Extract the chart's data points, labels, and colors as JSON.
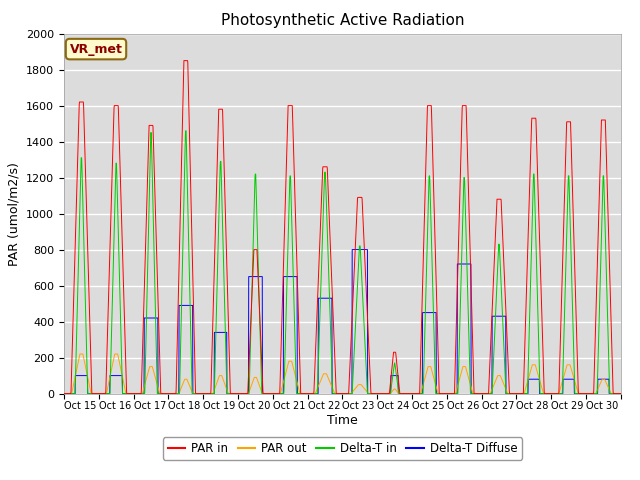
{
  "title": "Photosynthetic Active Radiation",
  "ylabel": "PAR (umol/m2/s)",
  "xlabel": "Time",
  "annotation": "VR_met",
  "ylim": [
    0,
    2000
  ],
  "line_colors": {
    "PAR in": "#FF0000",
    "PAR out": "#FFA500",
    "Delta-T in": "#00CC00",
    "Delta-T Diffuse": "#0000FF"
  },
  "legend_labels": [
    "PAR in",
    "PAR out",
    "Delta-T in",
    "Delta-T Diffuse"
  ],
  "xtick_labels": [
    "Oct 15",
    "Oct 16",
    "Oct 17",
    "Oct 18",
    "Oct 19",
    "Oct 20",
    "Oct 21",
    "Oct 22",
    "Oct 23",
    "Oct 24",
    "Oct 25",
    "Oct 26",
    "Oct 27",
    "Oct 28",
    "Oct 29",
    "Oct 30"
  ],
  "background_color": "#DCDCDC",
  "n_days": 16,
  "pts_per_day": 144
}
